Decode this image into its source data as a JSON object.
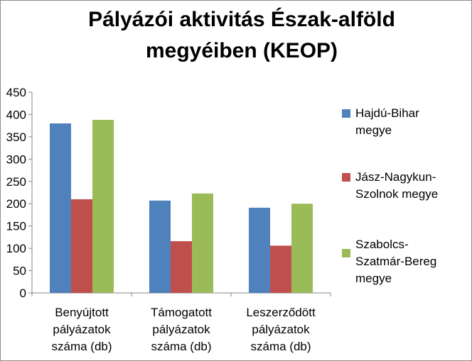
{
  "chart_data": {
    "type": "bar",
    "title_lines": [
      "Pályázói aktivitás Észak-alföld",
      "megyéiben (KEOP)"
    ],
    "categories": [
      [
        "Benyújtott",
        "pályázatok",
        "száma (db)"
      ],
      [
        "Támogatott",
        "pályázatok",
        "száma (db)"
      ],
      [
        "Leszerződött",
        "pályázatok",
        "száma (db)"
      ]
    ],
    "series": [
      {
        "name": "Hajdú-Bihar megye",
        "legend_lines": [
          "Hajdú-Bihar",
          "megye"
        ],
        "color": "#4f81bd",
        "values": [
          380,
          207,
          191
        ]
      },
      {
        "name": "Jász-Nagykun-Szolnok megye",
        "legend_lines": [
          "Jász-Nagykun-",
          "Szolnok megye"
        ],
        "color": "#c0504d",
        "values": [
          210,
          116,
          106
        ]
      },
      {
        "name": "Szabolcs-Szatmár-Bereg megye",
        "legend_lines": [
          "Szabolcs-",
          "Szatmár-Bereg",
          "megye"
        ],
        "color": "#9bbb59",
        "values": [
          388,
          223,
          200
        ]
      }
    ],
    "ylim": [
      0,
      450
    ],
    "yticks": [
      "0",
      "50",
      "100",
      "150",
      "200",
      "250",
      "300",
      "350",
      "400",
      "450"
    ],
    "xlabel": "",
    "ylabel": "",
    "grid": false,
    "legend_position": "right"
  }
}
